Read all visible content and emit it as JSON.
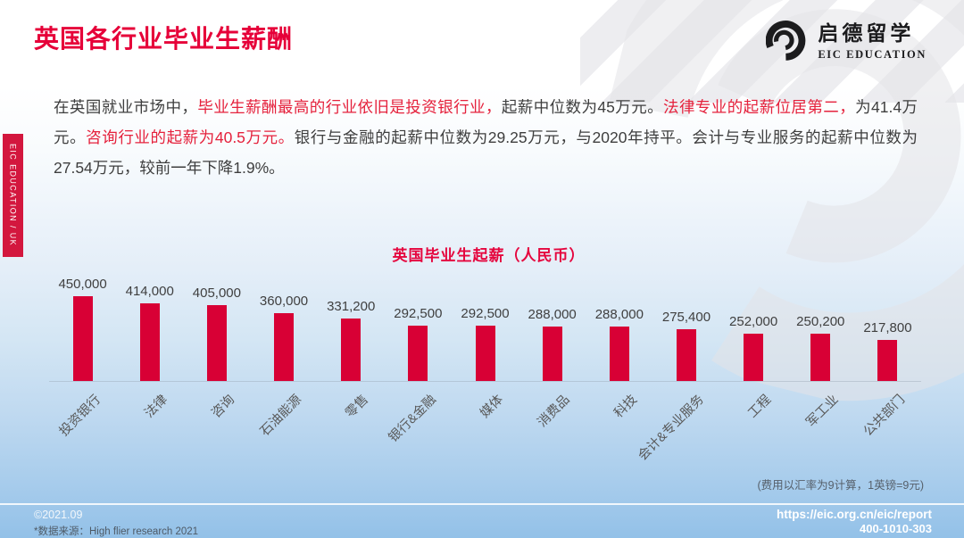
{
  "header": {
    "title": "英国各行业毕业生薪酬",
    "logo": {
      "cn": "启德留学",
      "en": "EIC EDUCATION"
    }
  },
  "side_tab": {
    "label": "EIC EDUCATION / UK"
  },
  "intro": {
    "segments": [
      {
        "text": "在英国就业市场中，",
        "highlight": false
      },
      {
        "text": "毕业生薪酬最高的行业依旧是投资银行业，",
        "highlight": true
      },
      {
        "text": "起薪中位数为45万元。",
        "highlight": false
      },
      {
        "text": "法律专业的起薪位居第二，",
        "highlight": true
      },
      {
        "text": "为41.4万元。",
        "highlight": false
      },
      {
        "text": "咨询行业的起薪为40.5万元。",
        "highlight": true
      },
      {
        "text": "银行与金融的起薪中位数为29.25万元，与2020年持平。会计与专业服务的起薪中位数为27.54万元，较前一年下降1.9%。",
        "highlight": false
      }
    ]
  },
  "chart_data": {
    "type": "bar",
    "title": "英国毕业生起薪（人民币）",
    "categories": [
      "投资银行",
      "法律",
      "咨询",
      "石油能源",
      "零售",
      "银行&金融",
      "媒体",
      "消费品",
      "科技",
      "会计&专业服务",
      "工程",
      "军工业",
      "公共部门"
    ],
    "values": [
      450000,
      414000,
      405000,
      360000,
      331200,
      292500,
      292500,
      288000,
      288000,
      275400,
      252000,
      250200,
      217800
    ],
    "value_labels": [
      "450,000",
      "414,000",
      "405,000",
      "360,000",
      "331,200",
      "292,500",
      "292,500",
      "288,000",
      "288,000",
      "275,400",
      "252,000",
      "250,200",
      "217,800"
    ],
    "ylim": [
      0,
      450000
    ],
    "bar_color": "#D80035",
    "grid": false,
    "legend": false,
    "xlabel": "",
    "ylabel": ""
  },
  "chart_note": "(费用以汇率为9计算，1英镑=9元)",
  "footer": {
    "copyright": "©2021.09",
    "source": "*数据来源：High flier research 2021",
    "url": "https://eic.org.cn/eic/report",
    "phone": "400-1010-303"
  },
  "colors": {
    "accent_red": "#E60039",
    "bar_red": "#D80035",
    "highlight_red": "#E5213C",
    "footer_blue": "#93C1E8"
  }
}
